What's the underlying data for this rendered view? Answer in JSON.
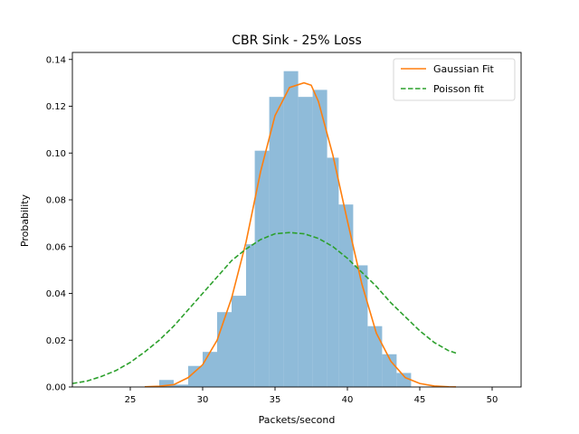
{
  "chart_data": {
    "type": "bar+line",
    "title": "CBR Sink - 25% Loss",
    "xlabel": "Packets/second",
    "ylabel": "Probability",
    "xlim": [
      21,
      52
    ],
    "ylim": [
      0,
      0.143
    ],
    "x_ticks": [
      25,
      30,
      35,
      40,
      45,
      50
    ],
    "y_ticks": [
      0.0,
      0.02,
      0.04,
      0.06,
      0.08,
      0.1,
      0.12,
      0.14
    ],
    "x_tick_labels": [
      "25",
      "30",
      "35",
      "40",
      "45",
      "50"
    ],
    "y_tick_labels": [
      "0.00",
      "0.02",
      "0.04",
      "0.06",
      "0.08",
      "0.10",
      "0.12",
      "0.14"
    ],
    "grid": false,
    "legend_position": "top-right",
    "histogram": {
      "color": "#8fbbd9",
      "bins": [
        {
          "x0": 27.0,
          "x1": 28.0,
          "value": 0.003
        },
        {
          "x0": 28.0,
          "x1": 29.0,
          "value": 0.001
        },
        {
          "x0": 29.0,
          "x1": 30.0,
          "value": 0.009
        },
        {
          "x0": 30.0,
          "x1": 31.0,
          "value": 0.015
        },
        {
          "x0": 31.0,
          "x1": 32.0,
          "value": 0.032
        },
        {
          "x0": 32.0,
          "x1": 33.0,
          "value": 0.039
        },
        {
          "x0": 33.0,
          "x1": 33.6,
          "value": 0.061
        },
        {
          "x0": 33.6,
          "x1": 34.6,
          "value": 0.101
        },
        {
          "x0": 34.6,
          "x1": 35.6,
          "value": 0.124
        },
        {
          "x0": 35.6,
          "x1": 36.6,
          "value": 0.135
        },
        {
          "x0": 36.6,
          "x1": 37.6,
          "value": 0.124
        },
        {
          "x0": 37.6,
          "x1": 38.6,
          "value": 0.127
        },
        {
          "x0": 38.6,
          "x1": 39.4,
          "value": 0.098
        },
        {
          "x0": 39.4,
          "x1": 40.4,
          "value": 0.078
        },
        {
          "x0": 40.4,
          "x1": 41.4,
          "value": 0.052
        },
        {
          "x0": 41.4,
          "x1": 42.4,
          "value": 0.026
        },
        {
          "x0": 42.4,
          "x1": 43.4,
          "value": 0.014
        },
        {
          "x0": 43.4,
          "x1": 44.4,
          "value": 0.006
        }
      ]
    },
    "series": [
      {
        "name": "Gaussian Fit",
        "color": "#ff7f0e",
        "dash": "solid",
        "x": [
          26,
          27,
          28,
          29,
          30,
          31,
          32,
          33,
          34,
          35,
          36,
          37,
          37.5,
          38,
          39,
          40,
          41,
          42,
          43,
          44,
          45,
          46,
          47,
          47.5
        ],
        "y": [
          0.0001,
          0.0003,
          0.001,
          0.004,
          0.0095,
          0.02,
          0.038,
          0.062,
          0.092,
          0.116,
          0.128,
          0.13,
          0.129,
          0.122,
          0.099,
          0.071,
          0.044,
          0.023,
          0.011,
          0.004,
          0.0015,
          0.0004,
          0.0001,
          5e-05
        ]
      },
      {
        "name": "Poisson fit",
        "color": "#2ca02c",
        "dash": "dashed",
        "x": [
          21,
          22,
          23,
          24,
          25,
          26,
          27,
          28,
          29,
          30,
          31,
          32,
          33,
          34,
          35,
          36,
          37,
          38,
          39,
          40,
          41,
          42,
          43,
          44,
          45,
          46,
          47,
          47.5
        ],
        "y": [
          0.0015,
          0.0025,
          0.0045,
          0.007,
          0.0105,
          0.015,
          0.02,
          0.026,
          0.033,
          0.04,
          0.047,
          0.054,
          0.059,
          0.063,
          0.0655,
          0.066,
          0.0655,
          0.0635,
          0.06,
          0.055,
          0.049,
          0.043,
          0.036,
          0.03,
          0.024,
          0.019,
          0.0155,
          0.0145
        ]
      }
    ]
  }
}
